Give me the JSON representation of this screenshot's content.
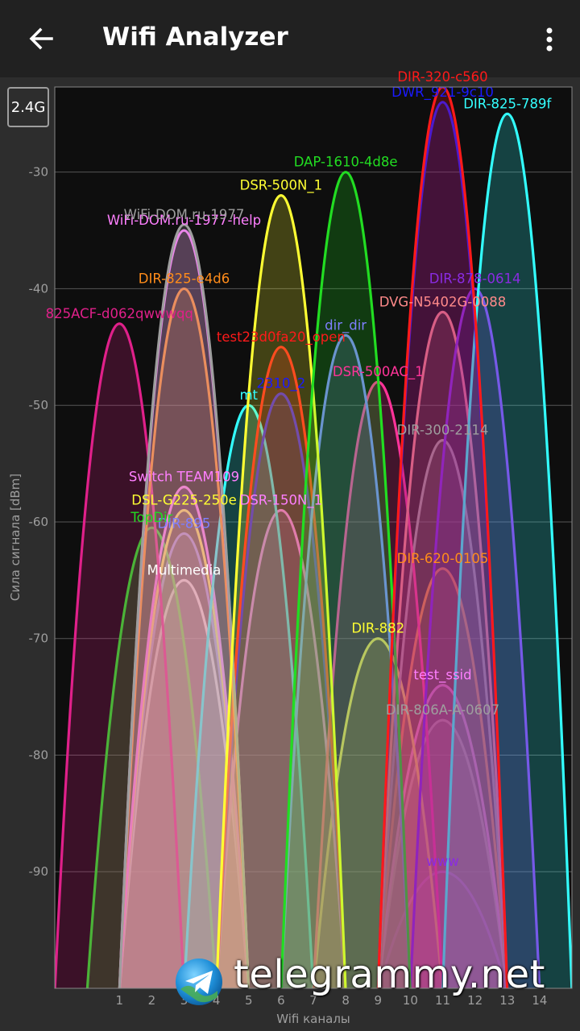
{
  "app_bar": {
    "title": "Wifi Analyzer",
    "back_icon": "arrow-left-icon",
    "menu_icon": "more-vert-icon"
  },
  "band_button": "2.4G",
  "watermark": {
    "text": "telegrammy.net",
    "icon": "telegram-logo"
  },
  "chart_data": {
    "type": "area",
    "xlabel": "Wifi каналы",
    "ylabel": "Сила сигнала [dBm]",
    "x_ticks": [
      "1",
      "2",
      "3",
      "4",
      "5",
      "6",
      "7",
      "8",
      "9",
      "10",
      "11",
      "12",
      "13",
      "14"
    ],
    "y_ticks": [
      "-30",
      "-40",
      "-50",
      "-60",
      "-70",
      "-80",
      "-90"
    ],
    "y_tick_values": [
      -30,
      -40,
      -50,
      -60,
      -70,
      -80,
      -90
    ],
    "xlim": [
      -1,
      15
    ],
    "ylim": [
      -100,
      -22.7
    ],
    "grid": true,
    "series": [
      {
        "name": "DIR-320-c560",
        "channel": 11,
        "dbm": -22.7,
        "color": "#ff1a1a"
      },
      {
        "name": "DWR_921-9c10",
        "channel": 11,
        "dbm": -24,
        "color": "#1a1aff"
      },
      {
        "name": "DIR-825-789f",
        "channel": 13,
        "dbm": -25,
        "color": "#33ffff"
      },
      {
        "name": "DAP-1610-4d8e",
        "channel": 8,
        "dbm": -30,
        "color": "#22dd22"
      },
      {
        "name": "DSR-500N_1",
        "channel": 6,
        "dbm": -32,
        "color": "#ffff33"
      },
      {
        "name": "WiFi-DOM.ru-1977",
        "channel": 3,
        "dbm": -34.5,
        "color": "#9e9e9e"
      },
      {
        "name": "WiFi-DOM.ru-1977-help",
        "channel": 3,
        "dbm": -35,
        "color": "#ff7fff"
      },
      {
        "name": "DIR-825-e4d6",
        "channel": 3,
        "dbm": -40,
        "color": "#ff8c1a"
      },
      {
        "name": "DIR-878-0614",
        "channel": 12,
        "dbm": -40,
        "color": "#8a2be2"
      },
      {
        "name": "DVG-N5402G-0088",
        "channel": 11,
        "dbm": -42,
        "color": "#ff8a8a"
      },
      {
        "name": "825ACF-d062qwwwqq",
        "channel": 1,
        "dbm": -43,
        "color": "#e0208a"
      },
      {
        "name": "dir_dir",
        "channel": 8,
        "dbm": -44,
        "color": "#7f7fff"
      },
      {
        "name": "test23d0fa20_open",
        "channel": 6,
        "dbm": -45,
        "color": "#ff1a1a"
      },
      {
        "name": "DSR-500AC_1",
        "channel": 9,
        "dbm": -48,
        "color": "#ff3399"
      },
      {
        "name": "2310_2",
        "channel": 6,
        "dbm": -49,
        "color": "#1a1aff"
      },
      {
        "name": "mt",
        "channel": 5,
        "dbm": -50,
        "color": "#33ffff"
      },
      {
        "name": "DIR-300-2114",
        "channel": 11,
        "dbm": -53,
        "color": "#9e9e9e"
      },
      {
        "name": "Switch TEAM109",
        "channel": 3,
        "dbm": -57,
        "color": "#ff7fff"
      },
      {
        "name": "DSL-G225-250e",
        "channel": 3,
        "dbm": -59,
        "color": "#ffff33"
      },
      {
        "name": "DSR-150N_1",
        "channel": 6,
        "dbm": -59,
        "color": "#ff7fff"
      },
      {
        "name": "TopDir",
        "channel": 2,
        "dbm": -60.5,
        "color": "#22dd22"
      },
      {
        "name": "DIR-895",
        "channel": 3,
        "dbm": -61,
        "color": "#7f7fff"
      },
      {
        "name": "DIR-620-0105",
        "channel": 11,
        "dbm": -64,
        "color": "#ff8c1a"
      },
      {
        "name": "Multimedia",
        "channel": 3,
        "dbm": -65,
        "color": "#ffffff"
      },
      {
        "name": "DIR-882",
        "channel": 9,
        "dbm": -70,
        "color": "#ffff33"
      },
      {
        "name": "test_ssid",
        "channel": 11,
        "dbm": -74,
        "color": "#ff7fff"
      },
      {
        "name": "DIR-806A-A-0607",
        "channel": 11,
        "dbm": -77,
        "color": "#9e9e9e"
      },
      {
        "name": "www",
        "channel": 11,
        "dbm": -90,
        "color": "#8a2be2"
      }
    ]
  }
}
